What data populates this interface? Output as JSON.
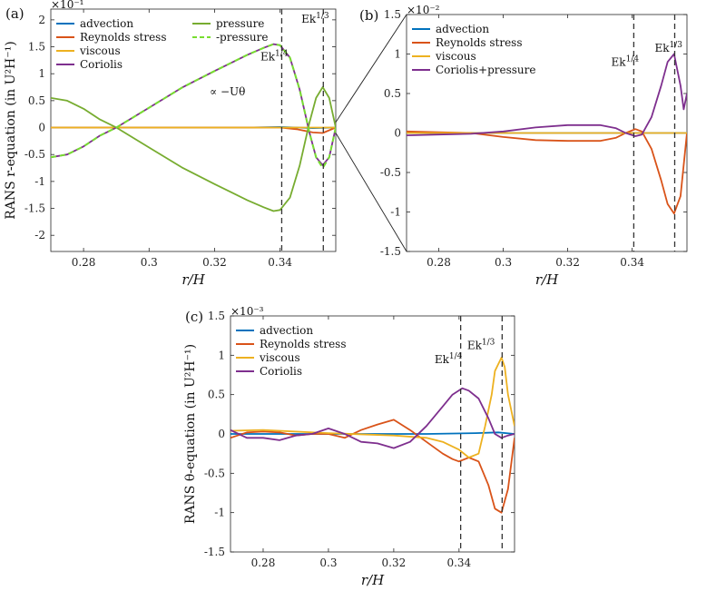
{
  "chart_data": [
    {
      "id": "a",
      "type": "line",
      "panel_label": "(a)",
      "xlabel": "r/H",
      "ylabel": "RANS r-equation (in U²H⁻¹)",
      "multiplier": "×10⁻¹",
      "xlim": [
        0.27,
        0.357
      ],
      "ylim": [
        -2.3,
        2.2
      ],
      "xticks": [
        0.28,
        0.3,
        0.32,
        0.34
      ],
      "xtick_labels": [
        "0.28",
        "0.3",
        "0.32",
        "0.34"
      ],
      "yticks": [
        -2,
        -1.5,
        -1,
        -0.5,
        0,
        0.5,
        1,
        1.5,
        2
      ],
      "ytick_labels": [
        "-2",
        "-1.5",
        "-1",
        "-0.5",
        "0",
        "0.5",
        "1",
        "1.5",
        "2"
      ],
      "legend": {
        "columns": 2,
        "position": "top-left"
      },
      "vlines": [
        {
          "x": 0.3405,
          "label": "Ek1/4",
          "label_x": 0.334,
          "label_y": 1.25
        },
        {
          "x": 0.3532,
          "label": "Ek1/3",
          "label_x": 0.3465,
          "label_y": 1.95
        }
      ],
      "annotations": [
        {
          "text": "∝ −Uθ",
          "x": 0.3185,
          "y": 0.6
        }
      ],
      "series": [
        {
          "name": "advection",
          "color": "#0072BD",
          "dash": false,
          "x": [
            0.27,
            0.3,
            0.33,
            0.34,
            0.35,
            0.357
          ],
          "y": [
            0,
            0,
            0,
            0.01,
            -0.01,
            0
          ]
        },
        {
          "name": "Reynolds stress",
          "color": "#D95319",
          "dash": false,
          "x": [
            0.27,
            0.3,
            0.33,
            0.34,
            0.345,
            0.35,
            0.353,
            0.357
          ],
          "y": [
            0,
            0,
            0,
            0,
            -0.03,
            -0.09,
            -0.1,
            0
          ]
        },
        {
          "name": "viscous",
          "color": "#EDB120",
          "dash": false,
          "x": [
            0.27,
            0.3,
            0.34,
            0.35,
            0.357
          ],
          "y": [
            0,
            0,
            0,
            0,
            0
          ]
        },
        {
          "name": "Coriolis",
          "color": "#7E2F8E",
          "dash": false,
          "x": [
            0.27,
            0.275,
            0.28,
            0.285,
            0.29,
            0.3,
            0.31,
            0.32,
            0.33,
            0.335,
            0.338,
            0.34,
            0.343,
            0.346,
            0.349,
            0.351,
            0.353,
            0.355,
            0.357
          ],
          "y": [
            -0.55,
            -0.5,
            -0.35,
            -0.15,
            0,
            0.37,
            0.74,
            1.05,
            1.35,
            1.48,
            1.55,
            1.53,
            1.3,
            0.7,
            -0.1,
            -0.55,
            -0.7,
            -0.55,
            0
          ]
        },
        {
          "name": "pressure",
          "color": "#77AC30",
          "dash": false,
          "x": [
            0.27,
            0.275,
            0.28,
            0.285,
            0.29,
            0.3,
            0.31,
            0.32,
            0.33,
            0.335,
            0.338,
            0.34,
            0.343,
            0.346,
            0.349,
            0.351,
            0.353,
            0.355,
            0.357
          ],
          "y": [
            0.55,
            0.5,
            0.35,
            0.15,
            0,
            -0.37,
            -0.74,
            -1.05,
            -1.35,
            -1.48,
            -1.55,
            -1.53,
            -1.3,
            -0.7,
            0.1,
            0.55,
            0.75,
            0.55,
            0
          ]
        },
        {
          "name": "-pressure",
          "color": "#77DD30",
          "dash": true,
          "x": [
            0.27,
            0.275,
            0.28,
            0.285,
            0.29,
            0.3,
            0.31,
            0.32,
            0.33,
            0.335,
            0.338,
            0.34,
            0.343,
            0.346,
            0.349,
            0.351,
            0.353,
            0.355,
            0.357
          ],
          "y": [
            -0.55,
            -0.5,
            -0.35,
            -0.15,
            0,
            0.37,
            0.74,
            1.05,
            1.35,
            1.48,
            1.55,
            1.53,
            1.3,
            0.7,
            -0.1,
            -0.55,
            -0.75,
            -0.55,
            0
          ]
        }
      ]
    },
    {
      "id": "b",
      "type": "line",
      "panel_label": "(b)",
      "xlabel": "r/H",
      "ylabel": "",
      "multiplier": "×10⁻²",
      "xlim": [
        0.27,
        0.357
      ],
      "ylim": [
        -1.5,
        1.5
      ],
      "xticks": [
        0.28,
        0.3,
        0.32,
        0.34
      ],
      "xtick_labels": [
        "0.28",
        "0.3",
        "0.32",
        "0.34"
      ],
      "yticks": [
        -1.5,
        -1,
        -0.5,
        0,
        0.5,
        1,
        1.5
      ],
      "ytick_labels": [
        "-1.5",
        "-1",
        "-0.5",
        "0",
        "0.5",
        "1",
        "1.5"
      ],
      "legend": {
        "columns": 1,
        "position": "top-left"
      },
      "vlines": [
        {
          "x": 0.3405,
          "label": "Ek1/4",
          "label_x": 0.3335,
          "label_y": 0.85
        },
        {
          "x": 0.3532,
          "label": "Ek1/3",
          "label_x": 0.347,
          "label_y": 1.03
        }
      ],
      "annotations": [],
      "series": [
        {
          "name": "advection",
          "color": "#0072BD",
          "dash": false,
          "x": [
            0.27,
            0.3,
            0.34,
            0.357
          ],
          "y": [
            0,
            0,
            0,
            0
          ]
        },
        {
          "name": "Reynolds stress",
          "color": "#D95319",
          "dash": false,
          "x": [
            0.27,
            0.28,
            0.29,
            0.3,
            0.31,
            0.32,
            0.33,
            0.335,
            0.338,
            0.341,
            0.343,
            0.346,
            0.349,
            0.351,
            0.353,
            0.355,
            0.357
          ],
          "y": [
            0.02,
            0.01,
            0,
            -0.05,
            -0.09,
            -0.1,
            -0.1,
            -0.06,
            0,
            0.05,
            0.02,
            -0.2,
            -0.6,
            -0.9,
            -1.02,
            -0.8,
            0
          ]
        },
        {
          "name": "viscous",
          "color": "#EDB120",
          "dash": false,
          "x": [
            0.27,
            0.3,
            0.34,
            0.35,
            0.357
          ],
          "y": [
            0,
            0,
            0,
            0,
            0
          ]
        },
        {
          "name": "Coriolis+pressure",
          "color": "#7E2F8E",
          "dash": false,
          "x": [
            0.27,
            0.28,
            0.29,
            0.3,
            0.31,
            0.32,
            0.33,
            0.335,
            0.338,
            0.341,
            0.343,
            0.346,
            0.349,
            0.351,
            0.353,
            0.355,
            0.356,
            0.357
          ],
          "y": [
            -0.03,
            -0.02,
            -0.01,
            0.02,
            0.07,
            0.1,
            0.1,
            0.06,
            0,
            -0.04,
            -0.02,
            0.2,
            0.6,
            0.9,
            1.0,
            0.6,
            0.3,
            0.5
          ]
        }
      ]
    },
    {
      "id": "c",
      "type": "line",
      "panel_label": "(c)",
      "xlabel": "r/H",
      "ylabel": "RANS θ-equation (in U²H⁻¹)",
      "multiplier": "×10⁻³",
      "xlim": [
        0.27,
        0.357
      ],
      "ylim": [
        -1.5,
        1.5
      ],
      "xticks": [
        0.28,
        0.3,
        0.32,
        0.34
      ],
      "xtick_labels": [
        "0.28",
        "0.3",
        "0.32",
        "0.34"
      ],
      "yticks": [
        -1.5,
        -1,
        -0.5,
        0,
        0.5,
        1,
        1.5
      ],
      "ytick_labels": [
        "-1.5",
        "-1",
        "-0.5",
        "0",
        "0.5",
        "1",
        "1.5"
      ],
      "legend": {
        "columns": 1,
        "position": "top-left"
      },
      "vlines": [
        {
          "x": 0.3405,
          "label": "Ek1/4",
          "label_x": 0.3325,
          "label_y": 0.9
        },
        {
          "x": 0.3532,
          "label": "Ek1/3",
          "label_x": 0.3425,
          "label_y": 1.08
        }
      ],
      "annotations": [],
      "series": [
        {
          "name": "advection",
          "color": "#0072BD",
          "dash": false,
          "x": [
            0.27,
            0.3,
            0.33,
            0.345,
            0.352,
            0.357
          ],
          "y": [
            0,
            0,
            0,
            0.01,
            0.02,
            0
          ]
        },
        {
          "name": "Reynolds stress",
          "color": "#D95319",
          "dash": false,
          "x": [
            0.27,
            0.275,
            0.28,
            0.285,
            0.29,
            0.295,
            0.3,
            0.305,
            0.31,
            0.315,
            0.32,
            0.325,
            0.33,
            0.335,
            0.338,
            0.34,
            0.343,
            0.346,
            0.349,
            0.351,
            0.353,
            0.355,
            0.357
          ],
          "y": [
            -0.05,
            0.02,
            0.03,
            0.02,
            -0.02,
            0,
            0,
            -0.05,
            0.05,
            0.12,
            0.18,
            0.05,
            -0.1,
            -0.25,
            -0.32,
            -0.35,
            -0.3,
            -0.35,
            -0.65,
            -0.95,
            -1.0,
            -0.7,
            -0.05
          ]
        },
        {
          "name": "viscous",
          "color": "#EDB120",
          "dash": false,
          "x": [
            0.27,
            0.28,
            0.3,
            0.32,
            0.33,
            0.335,
            0.34,
            0.343,
            0.346,
            0.348,
            0.35,
            0.351,
            0.353,
            0.354,
            0.355,
            0.357
          ],
          "y": [
            0.04,
            0.05,
            0.01,
            -0.02,
            -0.05,
            -0.1,
            -0.2,
            -0.3,
            -0.25,
            0.1,
            0.5,
            0.8,
            0.97,
            0.85,
            0.5,
            0.1
          ]
        },
        {
          "name": "Coriolis",
          "color": "#7E2F8E",
          "dash": false,
          "x": [
            0.27,
            0.275,
            0.28,
            0.285,
            0.29,
            0.295,
            0.3,
            0.305,
            0.31,
            0.315,
            0.32,
            0.325,
            0.33,
            0.335,
            0.338,
            0.341,
            0.343,
            0.346,
            0.349,
            0.351,
            0.353,
            0.355,
            0.357
          ],
          "y": [
            0.05,
            -0.05,
            -0.05,
            -0.08,
            -0.02,
            0,
            0.07,
            0,
            -0.1,
            -0.12,
            -0.18,
            -0.1,
            0.1,
            0.35,
            0.5,
            0.58,
            0.55,
            0.45,
            0.2,
            0,
            -0.05,
            -0.02,
            0
          ]
        }
      ]
    }
  ],
  "zoom_connectors": true
}
